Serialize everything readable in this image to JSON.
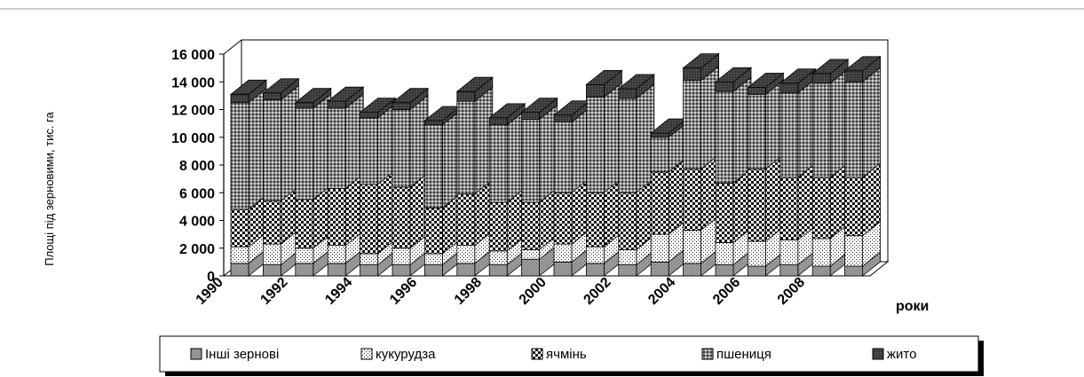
{
  "chart_data": {
    "type": "bar",
    "stacked": true,
    "three_d": true,
    "ylabel": "Площі під зерновими, тис. га",
    "xlabel": "роки",
    "ylim": [
      0,
      16000
    ],
    "yticks": [
      "0",
      "2 000",
      "4 000",
      "6 000",
      "8 000",
      "10 000",
      "12 000",
      "14 000",
      "16 000"
    ],
    "categories": [
      "1990",
      "1991",
      "1992",
      "1993",
      "1994",
      "1995",
      "1996",
      "1997",
      "1998",
      "1999",
      "2000",
      "2001",
      "2002",
      "2003",
      "2004",
      "2005",
      "2006",
      "2007",
      "2008",
      "2009"
    ],
    "x_tick_labels": [
      "1990",
      "1992",
      "1994",
      "1996",
      "1998",
      "2000",
      "2002",
      "2004",
      "2006",
      "2008"
    ],
    "series": [
      {
        "name": "Інші зернові",
        "values": [
          900,
          800,
          900,
          900,
          800,
          800,
          800,
          900,
          800,
          1200,
          1000,
          900,
          800,
          1000,
          900,
          800,
          700,
          800,
          700,
          700
        ]
      },
      {
        "name": "кукурудза",
        "values": [
          1200,
          1500,
          1100,
          1300,
          800,
          1200,
          800,
          1300,
          1000,
          700,
          1300,
          1200,
          1100,
          2000,
          2400,
          1600,
          1800,
          1800,
          2000,
          2200
        ]
      },
      {
        "name": "ячмінь",
        "values": [
          2700,
          3100,
          3500,
          4100,
          5000,
          4400,
          3300,
          3700,
          3500,
          3400,
          3700,
          3900,
          4100,
          4500,
          4400,
          4300,
          5200,
          4500,
          4400,
          4200
        ]
      },
      {
        "name": "пшениця",
        "values": [
          7700,
          7300,
          6600,
          5800,
          4800,
          5600,
          6000,
          6700,
          5600,
          6000,
          5100,
          6900,
          6800,
          2500,
          6400,
          6600,
          5400,
          6100,
          6800,
          6900
        ]
      },
      {
        "name": "жито",
        "values": [
          600,
          500,
          400,
          500,
          400,
          500,
          300,
          700,
          500,
          500,
          500,
          900,
          700,
          300,
          900,
          700,
          500,
          700,
          700,
          800
        ]
      }
    ]
  }
}
